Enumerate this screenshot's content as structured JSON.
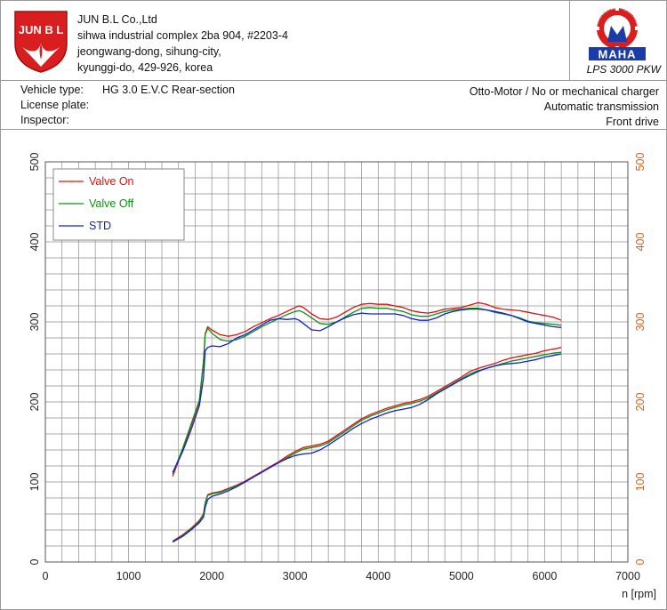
{
  "company": {
    "logo_text": "JUN B L",
    "name": "JUN B.L Co.,Ltd",
    "address": [
      "sihwa industrial complex 2ba 904, #2203-4",
      "jeongwang-dong, sihung-city,",
      "kyunggi-do, 429-926, korea"
    ]
  },
  "maha": {
    "ring_text": "Maschinenbau Haldenwang",
    "logo_text": "MAHA",
    "caption": "LPS 3000 PKW"
  },
  "vehicle": {
    "type_label": "Vehicle type:",
    "type_value": "HG 3.0 E.V.C Rear-section",
    "plate_label": "License plate:",
    "inspector_label": "Inspector:",
    "engine": "Otto-Motor / No or mechanical charger",
    "transmission": "Automatic transmission",
    "drive": "Front drive"
  },
  "colors": {
    "valve_on": "#e01010",
    "valve_off": "#109010",
    "std": "#1020d0",
    "right_axis": "#e06010",
    "grid": "#8c8c8c"
  },
  "chart_data": {
    "type": "line",
    "xlabel": "n [rpm]",
    "xlim": [
      0,
      7000
    ],
    "ylim": [
      0,
      500
    ],
    "x_ticks": [
      0,
      1000,
      2000,
      3000,
      4000,
      5000,
      6000,
      7000
    ],
    "y_ticks": [
      0,
      100,
      200,
      300,
      400,
      500
    ],
    "legend": {
      "position": "top-left"
    },
    "grid": true,
    "series": [
      {
        "name": "Valve On",
        "color_key": "valve_on",
        "x": [
          1530,
          1650,
          1750,
          1850,
          1900,
          1920,
          1950,
          2000,
          2100,
          2200,
          2300,
          2400,
          2500,
          2600,
          2700,
          2800,
          2900,
          3000,
          3050,
          3100,
          3200,
          3300,
          3400,
          3500,
          3600,
          3700,
          3800,
          3900,
          4000,
          4100,
          4200,
          4300,
          4400,
          4500,
          4600,
          4700,
          4800,
          4900,
          5000,
          5100,
          5200,
          5300,
          5400,
          5500,
          5600,
          5700,
          5800,
          5900,
          6000,
          6100,
          6200
        ],
        "y": [
          107,
          140,
          170,
          200,
          250,
          285,
          294,
          290,
          284,
          282,
          284,
          288,
          294,
          299,
          304,
          308,
          313,
          318,
          320,
          318,
          310,
          304,
          303,
          306,
          312,
          318,
          322,
          323,
          322,
          322,
          320,
          318,
          314,
          312,
          311,
          313,
          316,
          317,
          318,
          321,
          324,
          322,
          318,
          316,
          315,
          314,
          312,
          310,
          308,
          306,
          302
        ]
      },
      {
        "name": "Valve Off",
        "color_key": "valve_off",
        "x": [
          1530,
          1650,
          1750,
          1850,
          1900,
          1920,
          1950,
          2000,
          2100,
          2200,
          2300,
          2400,
          2500,
          2600,
          2700,
          2800,
          2900,
          3000,
          3050,
          3100,
          3200,
          3300,
          3400,
          3500,
          3600,
          3700,
          3800,
          3900,
          4000,
          4100,
          4200,
          4300,
          4400,
          4500,
          4600,
          4700,
          4800,
          4900,
          5000,
          5100,
          5200,
          5300,
          5400,
          5500,
          5600,
          5700,
          5800,
          5900,
          6000,
          6100,
          6200
        ],
        "y": [
          110,
          142,
          172,
          202,
          250,
          284,
          292,
          286,
          278,
          276,
          278,
          282,
          288,
          294,
          299,
          304,
          309,
          313,
          314,
          312,
          305,
          298,
          297,
          300,
          306,
          312,
          317,
          318,
          317,
          317,
          315,
          313,
          309,
          307,
          307,
          310,
          313,
          315,
          316,
          317,
          317,
          315,
          312,
          310,
          308,
          305,
          301,
          299,
          298,
          297,
          296
        ]
      },
      {
        "name": "STD",
        "color_key": "std",
        "x": [
          1530,
          1650,
          1750,
          1850,
          1900,
          1920,
          1950,
          2000,
          2100,
          2200,
          2300,
          2400,
          2500,
          2600,
          2700,
          2800,
          2900,
          3000,
          3050,
          3100,
          3200,
          3300,
          3400,
          3500,
          3600,
          3700,
          3800,
          3900,
          4000,
          4100,
          4200,
          4300,
          4400,
          4500,
          4600,
          4700,
          4800,
          4900,
          5000,
          5100,
          5200,
          5300,
          5400,
          5500,
          5600,
          5700,
          5800,
          5900,
          6000,
          6100,
          6200
        ],
        "y": [
          112,
          138,
          165,
          195,
          230,
          264,
          268,
          270,
          269,
          273,
          280,
          284,
          290,
          296,
          302,
          304,
          303,
          304,
          302,
          298,
          290,
          289,
          294,
          300,
          305,
          309,
          311,
          310,
          310,
          310,
          310,
          308,
          304,
          302,
          302,
          305,
          310,
          313,
          315,
          316,
          316,
          315,
          313,
          311,
          308,
          304,
          300,
          298,
          296,
          294,
          293
        ]
      },
      {
        "name": "",
        "color_key": "valve_on",
        "x": [
          1530,
          1650,
          1750,
          1850,
          1900,
          1920,
          1950,
          2000,
          2100,
          2200,
          2300,
          2400,
          2500,
          2600,
          2700,
          2800,
          2900,
          3000,
          3100,
          3200,
          3300,
          3400,
          3500,
          3600,
          3700,
          3800,
          3900,
          4000,
          4100,
          4200,
          4300,
          4400,
          4500,
          4600,
          4700,
          4800,
          4900,
          5000,
          5100,
          5200,
          5300,
          5400,
          5500,
          5600,
          5700,
          5800,
          5900,
          6000,
          6100,
          6200
        ],
        "y": [
          26,
          34,
          42,
          52,
          60,
          74,
          84,
          86,
          88,
          92,
          96,
          101,
          107,
          113,
          119,
          125,
          132,
          138,
          143,
          145,
          147,
          151,
          158,
          165,
          172,
          179,
          184,
          188,
          192,
          195,
          198,
          200,
          203,
          207,
          213,
          219,
          225,
          231,
          238,
          242,
          245,
          248,
          252,
          255,
          257,
          259,
          261,
          264,
          266,
          268
        ]
      },
      {
        "name": "",
        "color_key": "valve_off",
        "x": [
          1530,
          1650,
          1750,
          1850,
          1900,
          1920,
          1950,
          2000,
          2100,
          2200,
          2300,
          2400,
          2500,
          2600,
          2700,
          2800,
          2900,
          3000,
          3100,
          3200,
          3300,
          3400,
          3500,
          3600,
          3700,
          3800,
          3900,
          4000,
          4100,
          4200,
          4300,
          4400,
          4500,
          4600,
          4700,
          4800,
          4900,
          5000,
          5100,
          5200,
          5300,
          5400,
          5500,
          5600,
          5700,
          5800,
          5900,
          6000,
          6100,
          6200
        ],
        "y": [
          25,
          33,
          41,
          51,
          59,
          73,
          83,
          85,
          87,
          91,
          95,
          100,
          106,
          112,
          118,
          124,
          130,
          136,
          141,
          143,
          145,
          149,
          156,
          163,
          170,
          177,
          182,
          186,
          190,
          193,
          196,
          198,
          201,
          205,
          211,
          217,
          223,
          229,
          235,
          239,
          242,
          245,
          248,
          251,
          253,
          255,
          257,
          259,
          261,
          262
        ]
      },
      {
        "name": "",
        "color_key": "std",
        "x": [
          1530,
          1650,
          1750,
          1850,
          1900,
          1920,
          1950,
          2000,
          2100,
          2200,
          2300,
          2400,
          2500,
          2600,
          2700,
          2800,
          2900,
          3000,
          3100,
          3200,
          3300,
          3400,
          3500,
          3600,
          3700,
          3800,
          3900,
          4000,
          4100,
          4200,
          4300,
          4400,
          4500,
          4600,
          4700,
          4800,
          4900,
          5000,
          5100,
          5200,
          5300,
          5400,
          5500,
          5600,
          5700,
          5800,
          5900,
          6000,
          6100,
          6200
        ],
        "y": [
          25,
          32,
          40,
          49,
          56,
          68,
          78,
          82,
          85,
          89,
          94,
          100,
          106,
          112,
          118,
          124,
          129,
          133,
          135,
          136,
          140,
          146,
          153,
          160,
          167,
          173,
          178,
          182,
          186,
          189,
          191,
          193,
          197,
          203,
          210,
          216,
          222,
          228,
          233,
          238,
          242,
          245,
          247,
          248,
          249,
          251,
          253,
          256,
          258,
          260
        ]
      }
    ]
  }
}
